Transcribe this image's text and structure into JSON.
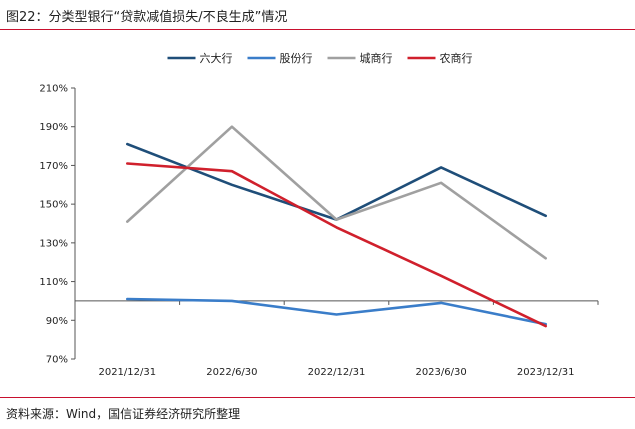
{
  "header": {
    "title": "图22：分类型银行“贷款减值损失/不良生成”情况"
  },
  "footer": {
    "source": "资料来源：Wind，国信证券经济研究所整理"
  },
  "chart_data": {
    "type": "line",
    "title": "",
    "xlabel": "",
    "ylabel": "",
    "categories": [
      "2021/12/31",
      "2022/6/30",
      "2022/12/31",
      "2023/6/30",
      "2023/12/31"
    ],
    "ylim": [
      70,
      210
    ],
    "yticks": [
      70,
      90,
      110,
      130,
      150,
      170,
      190,
      210
    ],
    "ytick_labels": [
      "70%",
      "90%",
      "110%",
      "130%",
      "150%",
      "170%",
      "190%",
      "210%"
    ],
    "reference_line": 100,
    "legend_position": "top",
    "grid": false,
    "series": [
      {
        "name": "六大行",
        "color": "#1f4e79",
        "values": [
          181,
          160,
          142,
          169,
          144
        ]
      },
      {
        "name": "股份行",
        "color": "#3a7dc9",
        "values": [
          101,
          100,
          93,
          99,
          88
        ]
      },
      {
        "name": "城商行",
        "color": "#a0a0a0",
        "values": [
          141,
          190,
          142,
          161,
          122
        ]
      },
      {
        "name": "农商行",
        "color": "#d0202c",
        "values": [
          171,
          167,
          138,
          113,
          87
        ]
      }
    ]
  }
}
